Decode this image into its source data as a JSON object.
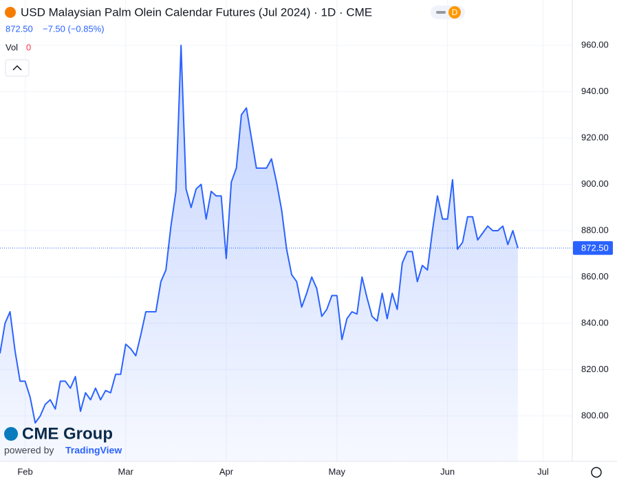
{
  "chart_data": {
    "type": "line",
    "title": "USD Malaysian Palm Olein Calendar Futures (Jul 2024) · 1D · CME",
    "badge": "D",
    "price_label": "872.50",
    "change_label": "−7.50 (−0.85%)",
    "volume_label": "Vol",
    "volume_value": "0",
    "logo": "CME Group",
    "powered_by": "powered by",
    "powered_brand": "TradingView",
    "categories": [
      null,
      null,
      null,
      null,
      null,
      "Feb",
      null,
      null,
      null,
      null,
      null,
      null,
      null,
      null,
      null,
      null,
      null,
      null,
      null,
      null,
      null,
      null,
      null,
      null,
      null,
      "Mar",
      null,
      null,
      null,
      null,
      null,
      null,
      null,
      null,
      null,
      null,
      null,
      null,
      null,
      null,
      null,
      null,
      null,
      null,
      null,
      "Apr",
      null,
      null,
      null,
      null,
      null,
      null,
      null,
      null,
      null,
      null,
      null,
      null,
      null,
      null,
      null,
      null,
      null,
      null,
      null,
      null,
      null,
      "May",
      null,
      null,
      null,
      null,
      null,
      null,
      null,
      null,
      null,
      null,
      null,
      null,
      null,
      null,
      null,
      null,
      null,
      null,
      null,
      null,
      null,
      "Jun",
      null,
      null,
      null,
      null,
      null,
      null,
      null,
      null,
      null,
      null,
      null,
      null,
      null,
      null,
      null,
      null,
      null,
      null,
      "Jul",
      null,
      null,
      null,
      null,
      null
    ],
    "series": [
      {
        "name": "USD Malaysian Palm Olein Calendar Futures",
        "color": "#2962ff",
        "values": [
          827,
          840,
          845,
          828,
          815,
          815,
          808,
          797,
          800,
          805,
          807,
          803,
          815,
          815,
          812,
          817,
          802,
          810,
          807,
          812,
          807,
          811,
          810,
          818,
          818,
          831,
          829,
          826,
          835,
          845,
          845,
          845,
          858,
          863,
          882,
          897,
          960,
          898,
          890,
          898,
          900,
          885,
          897,
          895,
          895,
          868,
          901,
          907,
          930,
          933,
          920,
          907,
          907,
          907,
          911,
          901,
          889,
          872,
          861,
          858,
          847,
          853,
          860,
          855,
          843,
          846,
          852,
          852,
          833,
          842,
          845,
          844,
          860,
          851,
          843,
          841,
          853,
          842,
          853,
          846,
          866,
          871,
          871,
          858,
          865,
          863,
          880,
          895,
          885,
          885,
          902,
          872,
          875,
          886,
          886,
          876,
          879,
          882,
          880,
          880,
          882,
          874,
          880,
          872.5,
          null,
          null,
          null,
          null,
          null,
          null,
          null,
          null,
          null,
          null
        ],
        "value_labels": [
          null,
          null,
          null,
          null,
          null,
          null,
          null,
          null,
          null,
          null,
          null,
          null,
          null,
          null,
          null,
          null,
          null,
          null,
          null,
          null,
          null,
          null,
          null,
          null,
          null,
          null,
          null,
          null,
          null,
          null,
          null,
          null,
          null,
          null,
          null,
          null,
          null,
          null,
          null,
          null,
          null,
          null,
          null,
          null,
          null,
          null,
          null,
          null,
          null,
          null,
          null,
          null,
          null,
          null,
          null,
          null,
          null,
          null,
          null,
          null,
          null,
          null,
          null,
          null,
          null,
          null,
          null,
          null,
          null,
          null,
          null,
          null,
          null,
          null,
          null,
          null,
          null,
          null,
          null,
          null,
          null,
          null,
          null,
          null,
          null,
          null,
          null,
          null,
          null,
          null,
          null,
          null,
          null,
          null,
          null,
          null,
          null,
          null,
          null,
          null,
          null,
          null,
          null,
          "872.50",
          null,
          null,
          null,
          null,
          null,
          null,
          null,
          null,
          null,
          null
        ]
      }
    ],
    "ylim": [
      780.4,
      979.6
    ],
    "yticks": [
      {
        "value": 800,
        "label": "800.00"
      },
      {
        "value": 820,
        "label": "820.00"
      },
      {
        "value": 840,
        "label": "840.00"
      },
      {
        "value": 860,
        "label": "860.00"
      },
      {
        "value": 880,
        "label": "880.00"
      },
      {
        "value": 900,
        "label": "900.00"
      },
      {
        "value": 920,
        "label": "920.00"
      },
      {
        "value": 940,
        "label": "940.00"
      },
      {
        "value": 960,
        "label": "960.00"
      }
    ],
    "grid": true
  }
}
